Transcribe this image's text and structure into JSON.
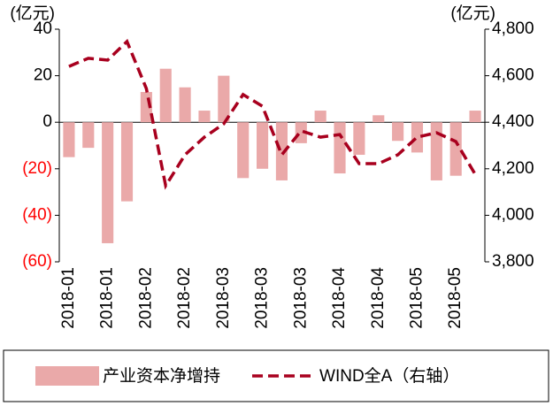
{
  "chart_data": {
    "type": "bar_line",
    "y_unit_label": "(亿元)",
    "y2_unit_label": "(亿元)",
    "categories": [
      "2018-01",
      null,
      "2018-01",
      null,
      "2018-02",
      null,
      "2018-02",
      null,
      "2018-03",
      null,
      "2018-03",
      null,
      "2018-03",
      null,
      "2018-04",
      null,
      "2018-04",
      null,
      "2018-05",
      null,
      "2018-05",
      null
    ],
    "series": [
      {
        "name": "产业资本净增持",
        "type": "bar",
        "color": "#eaa9a9",
        "axis": "y",
        "values": [
          -15,
          -11,
          -52,
          -34,
          13,
          23,
          15,
          5,
          20,
          -24,
          -20,
          -25,
          -9,
          5,
          -22,
          -14,
          3,
          -8,
          -13,
          -25,
          -23,
          5
        ]
      },
      {
        "name": "WIND全A（右轴）",
        "type": "line",
        "color": "#a8001e",
        "dashed": true,
        "axis": "y2",
        "values": [
          4640,
          4675,
          4667,
          4747,
          4545,
          4127,
          4260,
          4336,
          4393,
          4519,
          4469,
          4260,
          4363,
          4336,
          4347,
          4222,
          4222,
          4260,
          4336,
          4355,
          4317,
          4176
        ]
      }
    ],
    "ylim": [
      -60,
      40
    ],
    "yticks": [
      40,
      20,
      0,
      {
        "value": -20,
        "label": "(20)"
      },
      {
        "value": -40,
        "label": "(40)"
      },
      {
        "value": -60,
        "label": "(60)"
      }
    ],
    "negative_tick_color": "#ff0000",
    "y2lim": [
      3800,
      4800
    ],
    "y2ticks": [
      {
        "value": 4800,
        "label": "4,800"
      },
      {
        "value": 4600,
        "label": "4,600"
      },
      {
        "value": 4400,
        "label": "4,400"
      },
      {
        "value": 4200,
        "label": "4,200"
      },
      {
        "value": 4000,
        "label": "4,000"
      },
      {
        "value": 3800,
        "label": "3,800"
      }
    ],
    "legend": "bottom"
  }
}
